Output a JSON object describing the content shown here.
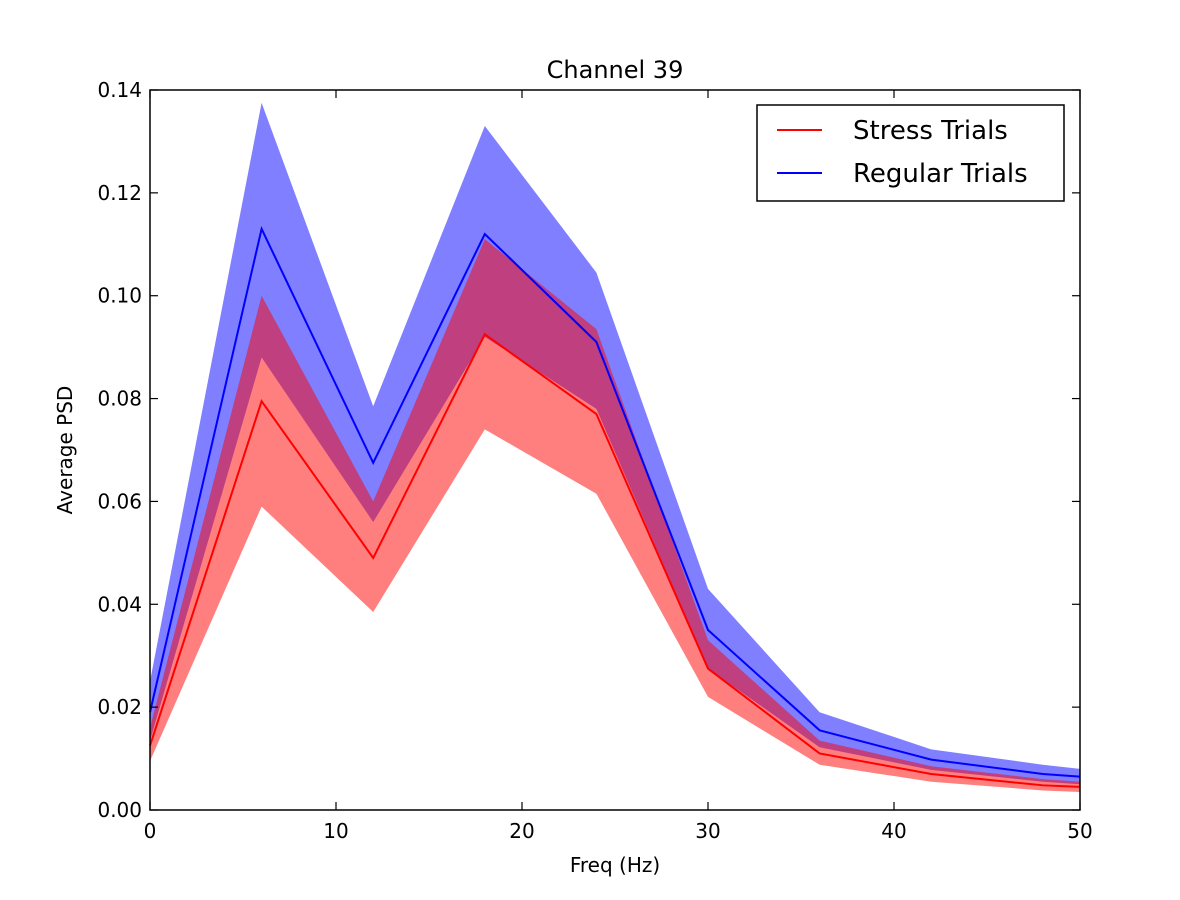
{
  "chart_data": {
    "type": "line",
    "title": "Channel 39",
    "xlabel": "Freq (Hz)",
    "ylabel": "Average PSD",
    "xlim": [
      0,
      50
    ],
    "ylim": [
      0,
      0.14
    ],
    "xticks": [
      0,
      10,
      20,
      30,
      40,
      50
    ],
    "xtick_labels": [
      "0",
      "10",
      "20",
      "30",
      "40",
      "50"
    ],
    "yticks": [
      0,
      0.02,
      0.04,
      0.06,
      0.08,
      0.1,
      0.12,
      0.14
    ],
    "ytick_labels": [
      "0.00",
      "0.02",
      "0.04",
      "0.06",
      "0.08",
      "0.10",
      "0.12",
      "0.14"
    ],
    "grid": false,
    "legend_position": "top-right",
    "x": [
      0,
      6,
      12,
      18,
      24,
      30,
      36,
      42,
      48,
      50
    ],
    "series": [
      {
        "name": "Stress Trials",
        "color": "#ff0000",
        "band_color": "#ff0000",
        "values": [
          0.0125,
          0.0795,
          0.049,
          0.0925,
          0.077,
          0.0275,
          0.011,
          0.007,
          0.0048,
          0.0045
        ],
        "lower": [
          0.0095,
          0.059,
          0.0385,
          0.074,
          0.0615,
          0.022,
          0.0088,
          0.0055,
          0.0038,
          0.0035
        ],
        "upper": [
          0.016,
          0.1,
          0.06,
          0.111,
          0.0935,
          0.033,
          0.0135,
          0.0085,
          0.006,
          0.0055
        ]
      },
      {
        "name": "Regular Trials",
        "color": "#0000ff",
        "band_color": "#0000ff",
        "values": [
          0.019,
          0.113,
          0.0675,
          0.112,
          0.091,
          0.035,
          0.0155,
          0.0098,
          0.007,
          0.0065
        ],
        "lower": [
          0.0135,
          0.088,
          0.056,
          0.092,
          0.078,
          0.0275,
          0.0122,
          0.0078,
          0.0055,
          0.005
        ],
        "upper": [
          0.025,
          0.1375,
          0.0785,
          0.133,
          0.1045,
          0.043,
          0.019,
          0.0118,
          0.0088,
          0.008
        ]
      }
    ]
  }
}
